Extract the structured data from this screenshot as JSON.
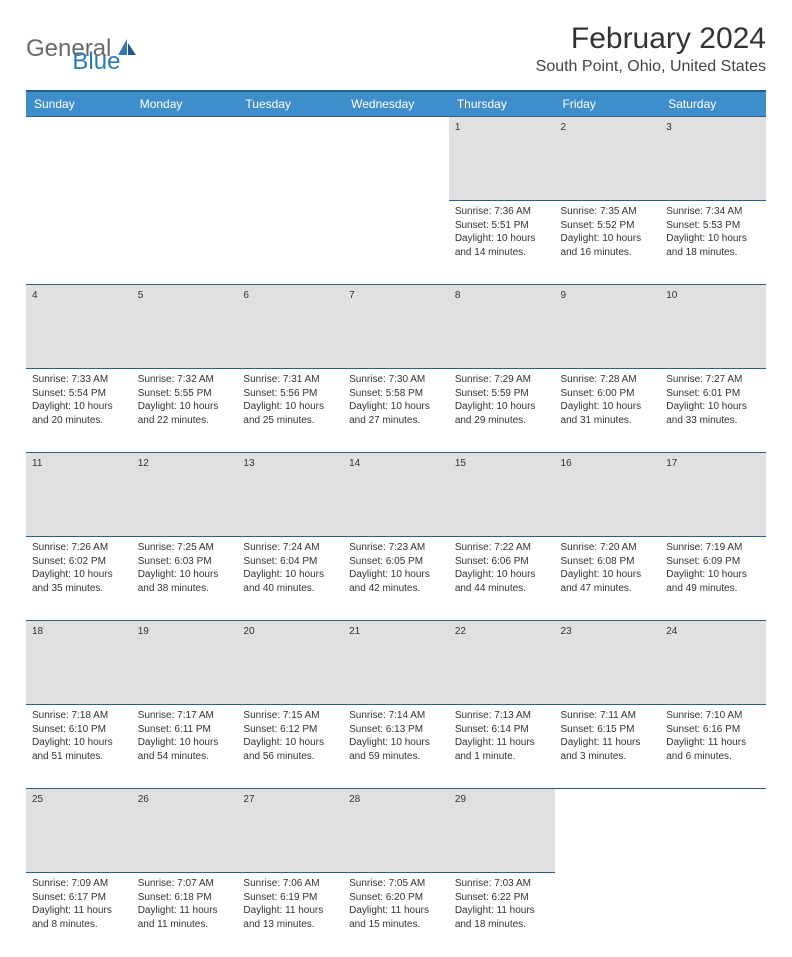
{
  "logo": {
    "general": "General",
    "blue": "Blue"
  },
  "title": "February 2024",
  "location": "South Point, Ohio, United States",
  "colors": {
    "header_bg": "#3e8ecb",
    "header_border": "#2a5f8a",
    "daynum_bg": "#e0e0e0",
    "logo_blue": "#2a7ab8",
    "logo_gray": "#6a6a6a"
  },
  "weekdays": [
    "Sunday",
    "Monday",
    "Tuesday",
    "Wednesday",
    "Thursday",
    "Friday",
    "Saturday"
  ],
  "weeks": [
    {
      "nums": [
        "",
        "",
        "",
        "",
        "1",
        "2",
        "3"
      ],
      "cells": [
        null,
        null,
        null,
        null,
        {
          "sunrise": "7:36 AM",
          "sunset": "5:51 PM",
          "daylight": "10 hours and 14 minutes."
        },
        {
          "sunrise": "7:35 AM",
          "sunset": "5:52 PM",
          "daylight": "10 hours and 16 minutes."
        },
        {
          "sunrise": "7:34 AM",
          "sunset": "5:53 PM",
          "daylight": "10 hours and 18 minutes."
        }
      ]
    },
    {
      "nums": [
        "4",
        "5",
        "6",
        "7",
        "8",
        "9",
        "10"
      ],
      "cells": [
        {
          "sunrise": "7:33 AM",
          "sunset": "5:54 PM",
          "daylight": "10 hours and 20 minutes."
        },
        {
          "sunrise": "7:32 AM",
          "sunset": "5:55 PM",
          "daylight": "10 hours and 22 minutes."
        },
        {
          "sunrise": "7:31 AM",
          "sunset": "5:56 PM",
          "daylight": "10 hours and 25 minutes."
        },
        {
          "sunrise": "7:30 AM",
          "sunset": "5:58 PM",
          "daylight": "10 hours and 27 minutes."
        },
        {
          "sunrise": "7:29 AM",
          "sunset": "5:59 PM",
          "daylight": "10 hours and 29 minutes."
        },
        {
          "sunrise": "7:28 AM",
          "sunset": "6:00 PM",
          "daylight": "10 hours and 31 minutes."
        },
        {
          "sunrise": "7:27 AM",
          "sunset": "6:01 PM",
          "daylight": "10 hours and 33 minutes."
        }
      ]
    },
    {
      "nums": [
        "11",
        "12",
        "13",
        "14",
        "15",
        "16",
        "17"
      ],
      "cells": [
        {
          "sunrise": "7:26 AM",
          "sunset": "6:02 PM",
          "daylight": "10 hours and 35 minutes."
        },
        {
          "sunrise": "7:25 AM",
          "sunset": "6:03 PM",
          "daylight": "10 hours and 38 minutes."
        },
        {
          "sunrise": "7:24 AM",
          "sunset": "6:04 PM",
          "daylight": "10 hours and 40 minutes."
        },
        {
          "sunrise": "7:23 AM",
          "sunset": "6:05 PM",
          "daylight": "10 hours and 42 minutes."
        },
        {
          "sunrise": "7:22 AM",
          "sunset": "6:06 PM",
          "daylight": "10 hours and 44 minutes."
        },
        {
          "sunrise": "7:20 AM",
          "sunset": "6:08 PM",
          "daylight": "10 hours and 47 minutes."
        },
        {
          "sunrise": "7:19 AM",
          "sunset": "6:09 PM",
          "daylight": "10 hours and 49 minutes."
        }
      ]
    },
    {
      "nums": [
        "18",
        "19",
        "20",
        "21",
        "22",
        "23",
        "24"
      ],
      "cells": [
        {
          "sunrise": "7:18 AM",
          "sunset": "6:10 PM",
          "daylight": "10 hours and 51 minutes."
        },
        {
          "sunrise": "7:17 AM",
          "sunset": "6:11 PM",
          "daylight": "10 hours and 54 minutes."
        },
        {
          "sunrise": "7:15 AM",
          "sunset": "6:12 PM",
          "daylight": "10 hours and 56 minutes."
        },
        {
          "sunrise": "7:14 AM",
          "sunset": "6:13 PM",
          "daylight": "10 hours and 59 minutes."
        },
        {
          "sunrise": "7:13 AM",
          "sunset": "6:14 PM",
          "daylight": "11 hours and 1 minute."
        },
        {
          "sunrise": "7:11 AM",
          "sunset": "6:15 PM",
          "daylight": "11 hours and 3 minutes."
        },
        {
          "sunrise": "7:10 AM",
          "sunset": "6:16 PM",
          "daylight": "11 hours and 6 minutes."
        }
      ]
    },
    {
      "nums": [
        "25",
        "26",
        "27",
        "28",
        "29",
        "",
        ""
      ],
      "cells": [
        {
          "sunrise": "7:09 AM",
          "sunset": "6:17 PM",
          "daylight": "11 hours and 8 minutes."
        },
        {
          "sunrise": "7:07 AM",
          "sunset": "6:18 PM",
          "daylight": "11 hours and 11 minutes."
        },
        {
          "sunrise": "7:06 AM",
          "sunset": "6:19 PM",
          "daylight": "11 hours and 13 minutes."
        },
        {
          "sunrise": "7:05 AM",
          "sunset": "6:20 PM",
          "daylight": "11 hours and 15 minutes."
        },
        {
          "sunrise": "7:03 AM",
          "sunset": "6:22 PM",
          "daylight": "11 hours and 18 minutes."
        },
        null,
        null
      ]
    }
  ]
}
